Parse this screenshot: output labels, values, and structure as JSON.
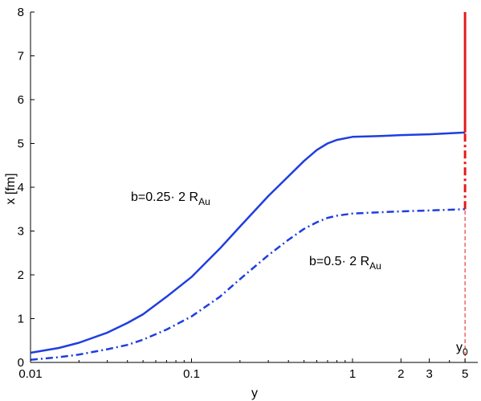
{
  "chart_data": {
    "type": "line",
    "xscale": "log",
    "xlim": [
      0.01,
      6
    ],
    "ylim": [
      0,
      8
    ],
    "xlabel": "y",
    "ylabel": "x [fm]",
    "xticks": [
      0.01,
      0.1,
      1,
      2,
      3,
      5
    ],
    "xtick_labels": [
      "0.01",
      "0.1",
      "1",
      "2",
      "3",
      "5"
    ],
    "yticks": [
      0,
      1,
      2,
      3,
      4,
      5,
      6,
      7,
      8
    ],
    "ytick_labels": [
      "0",
      "1",
      "2",
      "3",
      "4",
      "5",
      "6",
      "7",
      "8"
    ],
    "grid": false,
    "colors": {
      "series": "#1f3ee0",
      "marker": "#e31a1a"
    },
    "series": [
      {
        "label_main": "b=0.25· 2 R",
        "label_sub": "Au",
        "style": "solid",
        "x": [
          0.01,
          0.015,
          0.02,
          0.03,
          0.04,
          0.05,
          0.07,
          0.1,
          0.15,
          0.2,
          0.3,
          0.4,
          0.5,
          0.6,
          0.7,
          0.8,
          1.0,
          1.5,
          2,
          3,
          5
        ],
        "y": [
          0.22,
          0.33,
          0.45,
          0.68,
          0.9,
          1.1,
          1.5,
          1.95,
          2.6,
          3.1,
          3.8,
          4.25,
          4.6,
          4.85,
          5.0,
          5.08,
          5.15,
          5.17,
          5.19,
          5.21,
          5.25
        ]
      },
      {
        "label_main": "b=0.5· 2 R",
        "label_sub": "Au",
        "style": "dashdot",
        "x": [
          0.01,
          0.015,
          0.02,
          0.03,
          0.04,
          0.05,
          0.07,
          0.1,
          0.15,
          0.2,
          0.3,
          0.4,
          0.5,
          0.6,
          0.7,
          0.8,
          1.0,
          1.5,
          2,
          3,
          5
        ],
        "y": [
          0.06,
          0.12,
          0.18,
          0.3,
          0.4,
          0.52,
          0.75,
          1.05,
          1.5,
          1.9,
          2.45,
          2.8,
          3.05,
          3.2,
          3.3,
          3.35,
          3.4,
          3.43,
          3.45,
          3.47,
          3.5
        ]
      }
    ],
    "marker_line": {
      "x": 5,
      "label_main": "y",
      "label_sub": "0",
      "solid_range": [
        5.25,
        8
      ],
      "dashdot_range": [
        3.5,
        5.25
      ],
      "dashed_range": [
        0,
        3.5
      ]
    }
  }
}
